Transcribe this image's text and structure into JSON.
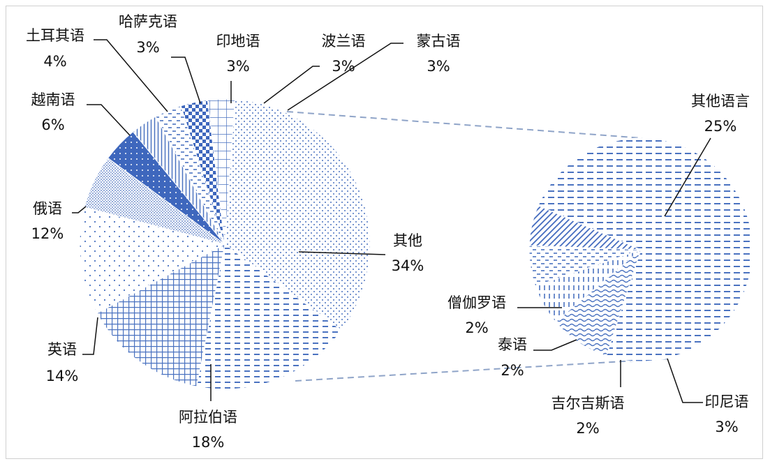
{
  "chart_data": [
    {
      "type": "pie",
      "slices": [
        {
          "label": "其他",
          "pct_text": "34%",
          "value": 34,
          "pattern": "dots-fine"
        },
        {
          "label": "阿拉伯语",
          "pct_text": "18%",
          "value": 18,
          "pattern": "dashes"
        },
        {
          "label": "英语",
          "pct_text": "14%",
          "value": 14,
          "pattern": "grid"
        },
        {
          "label": "俄语",
          "pct_text": "12%",
          "value": 12,
          "pattern": "dots-sparse"
        },
        {
          "label": "越南语",
          "pct_text": "6%",
          "value": 6,
          "pattern": "dots-dense"
        },
        {
          "label": "土耳其语",
          "pct_text": "4%",
          "value": 4,
          "pattern": "solid-dots"
        },
        {
          "label": "哈萨克语",
          "pct_text": "3%",
          "value": 3,
          "pattern": "vlines"
        },
        {
          "label": "印地语",
          "pct_text": "3%",
          "value": 3,
          "pattern": "short-dashes"
        },
        {
          "label": "波兰语",
          "pct_text": "3%",
          "value": 3,
          "pattern": "checker"
        },
        {
          "label": "蒙古语",
          "pct_text": "3%",
          "value": 3,
          "pattern": "grid-coarse"
        }
      ],
      "exploded_slice": "其他"
    },
    {
      "type": "pie",
      "slices": [
        {
          "label": "其他语言",
          "pct_text": "25%",
          "value": 25,
          "pattern": "dash-rows"
        },
        {
          "label": "僧伽罗语",
          "pct_text": "2%",
          "value": 2,
          "pattern": "diag"
        },
        {
          "label": "泰语",
          "pct_text": "2%",
          "value": 2,
          "pattern": "short-dashes"
        },
        {
          "label": "吉尔吉斯语",
          "pct_text": "2%",
          "value": 2,
          "pattern": "vdash"
        },
        {
          "label": "印尼语",
          "pct_text": "3%",
          "value": 3,
          "pattern": "wave"
        }
      ]
    }
  ],
  "colors": {
    "pattern_blue": "#4a72c0",
    "solid_blue": "#3e67bd",
    "connector": "#8fa4c8",
    "leader": "#111111"
  }
}
